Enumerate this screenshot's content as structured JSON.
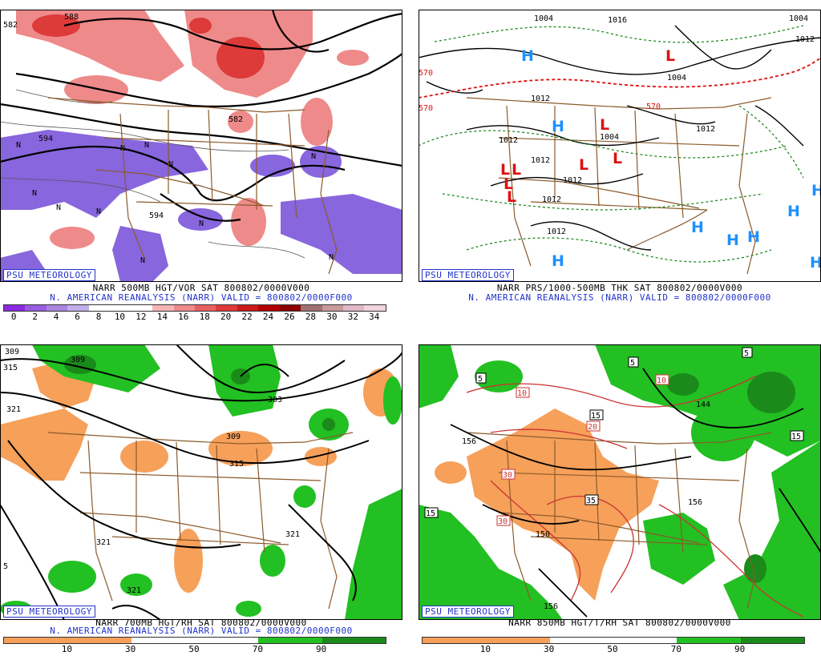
{
  "branding": "PSU METEOROLOGY",
  "panels": [
    {
      "caption": "NARR 500MB HGT/VOR SAT 800802/0000V000",
      "valid_line": "N. AMERICAN REANALYSIS (NARR) VALID = 800802/0000F000",
      "contour_labels": [
        "582",
        "588",
        "582",
        "594",
        "594"
      ],
      "vort_markers": [
        "N",
        "N",
        "N",
        "N",
        "N",
        "N",
        "N",
        "N",
        "N",
        "N",
        "N"
      ],
      "colorbar": {
        "ticks": [
          "0",
          "2",
          "4",
          "6",
          "8",
          "10",
          "12",
          "14",
          "16",
          "18",
          "20",
          "22",
          "24",
          "26",
          "28",
          "30",
          "32",
          "34"
        ],
        "colors": [
          "#8a2be2",
          "#9a5ce0",
          "#a985e0",
          "#c2aee8",
          "#ffffff",
          "#ffffff",
          "#ffffff",
          "#f7b4b4",
          "#f08a8a",
          "#e86060",
          "#e03838",
          "#cc1a1a",
          "#b30000",
          "#8c0000",
          "#a07070",
          "#c89a9a",
          "#e0b8c8",
          "#f2d4dc"
        ]
      }
    },
    {
      "caption": "NARR PRS/1000-500MB THK SAT 800802/0000V000",
      "valid_line": "N. AMERICAN REANALYSIS (NARR) VALID = 800802/0000F000",
      "pressure_labels": [
        "1004",
        "1016",
        "1004",
        "1012",
        "1004",
        "1012",
        "1012",
        "1012",
        "1012",
        "1012",
        "1004",
        "1012",
        "1012"
      ],
      "thickness_labels": [
        "570",
        "570",
        "570"
      ],
      "highs": [
        "H",
        "H",
        "H",
        "H",
        "H",
        "H",
        "H",
        "H",
        "H"
      ],
      "lows": [
        "L",
        "L",
        "L",
        "L",
        "L",
        "L",
        "L",
        "L"
      ],
      "colors": {
        "high": "#1e90ff",
        "low": "#dd1111"
      }
    },
    {
      "caption": "NARR 700MB HGT/RH SAT 800802/0000V000",
      "valid_line": "N. AMERICAN REANALYSIS (NARR) VALID = 800802/0000F000",
      "contour_labels": [
        "309",
        "315",
        "309",
        "321",
        "303",
        "309",
        "315",
        "321",
        "321",
        "321",
        "5"
      ],
      "colorbar": {
        "ticks": [
          "10",
          "30",
          "50",
          "70",
          "90"
        ],
        "colors": [
          "#f6a05a",
          "#f6a05a",
          "#ffffff",
          "#ffffff",
          "#22c022",
          "#1a8a1a"
        ]
      }
    },
    {
      "caption": "NARR 850MB HGT/T/RH SAT 800802/0000V000",
      "valid_line": "",
      "contour_labels": [
        "5",
        "5",
        "10",
        "10",
        "5",
        "20",
        "15",
        "144",
        "15",
        "156",
        "30",
        "30",
        "35",
        "15",
        "150",
        "156",
        "156"
      ],
      "colorbar": {
        "ticks": [
          "10",
          "30",
          "50",
          "70",
          "90"
        ],
        "colors": [
          "#f6a05a",
          "#f6a05a",
          "#ffffff",
          "#ffffff",
          "#22c022",
          "#1a8a1a"
        ]
      }
    }
  ]
}
